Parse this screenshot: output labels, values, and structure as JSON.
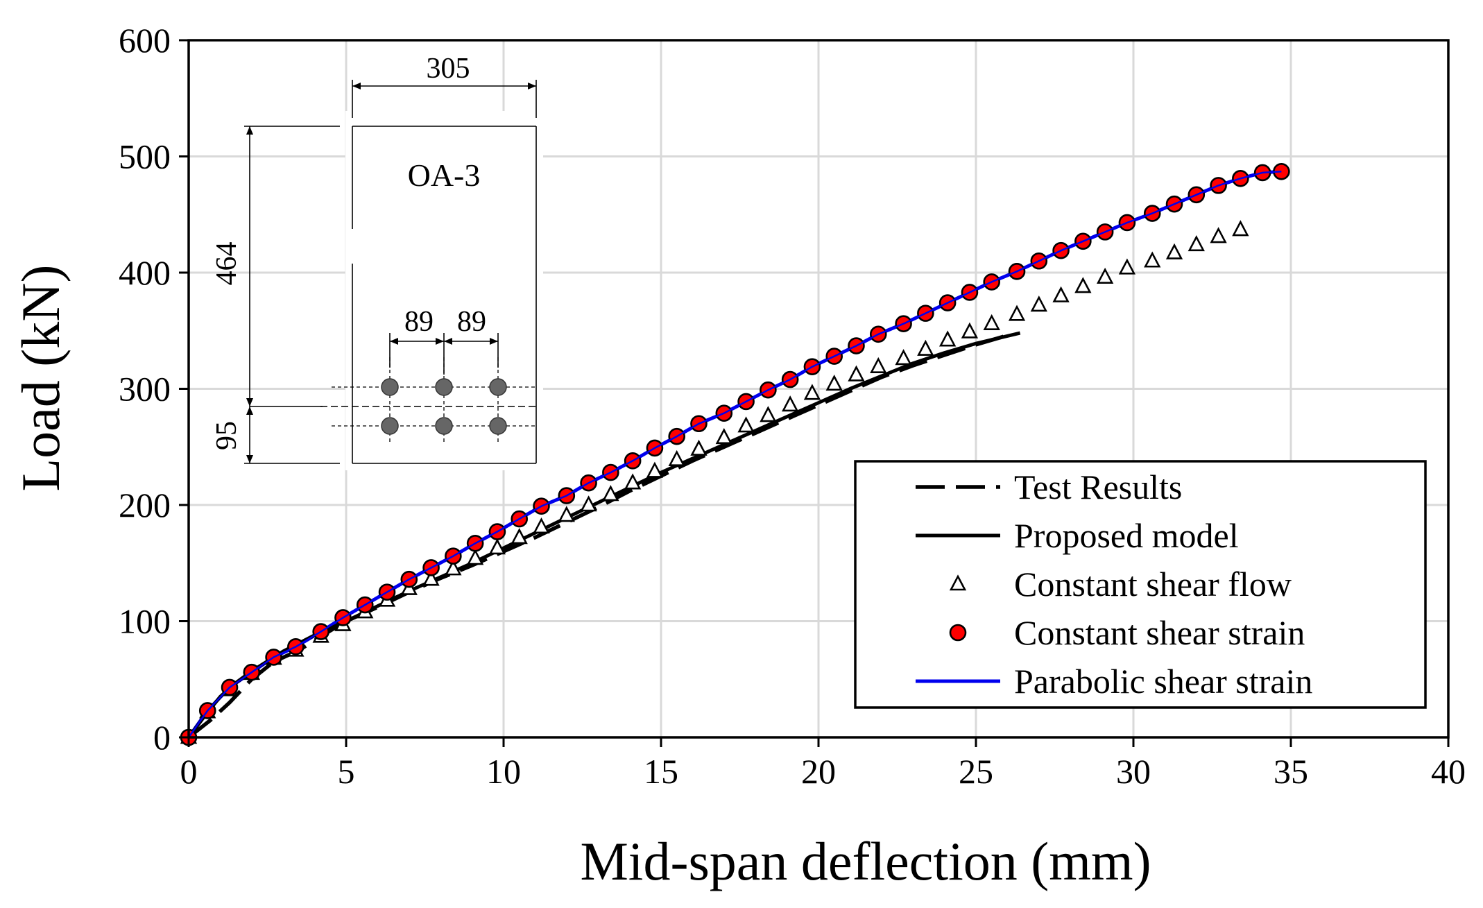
{
  "chart_data": {
    "type": "line",
    "title": "",
    "xlabel": "Mid-span deflection (mm)",
    "ylabel": "Load (kN)",
    "xlim": [
      0,
      40
    ],
    "ylim": [
      0,
      600
    ],
    "xticks": [
      0,
      5,
      10,
      15,
      20,
      25,
      30,
      35,
      40
    ],
    "yticks": [
      0,
      100,
      200,
      300,
      400,
      500,
      600
    ],
    "grid": true,
    "legend_position": "bottom-right",
    "colors": {
      "test": "#000000",
      "proposed": "#000000",
      "flow": "#000000",
      "strain_fill": "#ff0000",
      "strain_edge": "#000000",
      "parabolic": "#0000ee"
    },
    "series": [
      {
        "name": "Test Results",
        "style": "dashed-line",
        "x": [
          0,
          0.7,
          1.3,
          2.0,
          2.7,
          3.5,
          4.2,
          5.0,
          6.0,
          7.0,
          8.0,
          9.0,
          10.0,
          11.0,
          12.0,
          13.0,
          14.0,
          15.0,
          16.0,
          17.0,
          18.0,
          19.0,
          20.0,
          21.0,
          22.0,
          23.0,
          24.0,
          25.0,
          26.0
        ],
        "y": [
          0,
          15,
          30,
          50,
          65,
          75,
          87,
          100,
          112,
          125,
          137,
          148,
          160,
          172,
          185,
          198,
          212,
          225,
          238,
          250,
          262,
          274,
          286,
          298,
          310,
          320,
          329,
          338,
          346
        ]
      },
      {
        "name": "Proposed model",
        "style": "solid-line",
        "x": [
          0,
          0.5,
          1.0,
          1.5,
          2.0,
          3.0,
          4.0,
          5.0,
          6.0,
          7.0,
          8.0,
          9.0,
          10.0,
          11.0,
          12.0,
          13.0,
          14.0,
          15.0,
          16.0,
          17.0,
          18.0,
          19.0,
          20.0,
          21.0,
          22.0,
          23.0,
          24.0,
          25.0,
          26.4
        ],
        "y": [
          0,
          18,
          35,
          47,
          57,
          74,
          88,
          100,
          113,
          126,
          138,
          150,
          163,
          176,
          189,
          202,
          215,
          228,
          240,
          252,
          264,
          276,
          288,
          300,
          311,
          322,
          331,
          339,
          348
        ]
      },
      {
        "name": "Constant shear flow",
        "style": "open-triangle",
        "x": [
          0,
          0.6,
          1.3,
          2.0,
          2.7,
          3.4,
          4.2,
          4.9,
          5.6,
          6.3,
          7.0,
          7.7,
          8.4,
          9.1,
          9.8,
          10.5,
          11.2,
          12.0,
          12.7,
          13.4,
          14.1,
          14.8,
          15.5,
          16.2,
          17.0,
          17.7,
          18.4,
          19.1,
          19.8,
          20.5,
          21.2,
          21.9,
          22.7,
          23.4,
          24.1,
          24.8,
          25.5,
          26.3,
          27.0,
          27.7,
          28.4,
          29.1,
          29.8,
          30.6,
          31.3,
          32.0,
          32.7,
          33.4
        ],
        "y": [
          0,
          22,
          41,
          55,
          68,
          75,
          87,
          97,
          108,
          118,
          128,
          136,
          145,
          154,
          163,
          172,
          181,
          191,
          200,
          209,
          219,
          229,
          239,
          248,
          258,
          268,
          277,
          286,
          296,
          304,
          312,
          319,
          326,
          334,
          342,
          349,
          356,
          364,
          372,
          380,
          388,
          396,
          404,
          410,
          417,
          424,
          431,
          437
        ]
      },
      {
        "name": "Constant shear strain",
        "style": "filled-circle",
        "x": [
          0,
          0.6,
          1.3,
          2.0,
          2.7,
          3.4,
          4.2,
          4.9,
          5.6,
          6.3,
          7.0,
          7.7,
          8.4,
          9.1,
          9.8,
          10.5,
          11.2,
          12.0,
          12.7,
          13.4,
          14.1,
          14.8,
          15.5,
          16.2,
          17.0,
          17.7,
          18.4,
          19.1,
          19.8,
          20.5,
          21.2,
          21.9,
          22.7,
          23.4,
          24.1,
          24.8,
          25.5,
          26.3,
          27.0,
          27.7,
          28.4,
          29.1,
          29.8,
          30.6,
          31.3,
          32.0,
          32.7,
          33.4,
          34.1,
          34.7
        ],
        "y": [
          0,
          23,
          43,
          56,
          69,
          78,
          91,
          103,
          114,
          125,
          136,
          146,
          156,
          167,
          177,
          188,
          199,
          208,
          219,
          228,
          238,
          249,
          259,
          270,
          279,
          289,
          299,
          308,
          319,
          328,
          337,
          347,
          356,
          365,
          374,
          383,
          392,
          401,
          410,
          419,
          427,
          435,
          443,
          451,
          459,
          467,
          475,
          481,
          486,
          487
        ]
      },
      {
        "name": "Parabolic shear strain",
        "style": "blue-line",
        "x": [
          0,
          0.6,
          1.3,
          2.0,
          2.7,
          3.4,
          4.2,
          4.9,
          5.6,
          6.3,
          7.0,
          7.7,
          8.4,
          9.1,
          9.8,
          10.5,
          11.2,
          12.0,
          12.7,
          13.4,
          14.1,
          14.8,
          15.5,
          16.2,
          17.0,
          17.7,
          18.4,
          19.1,
          19.8,
          20.5,
          21.2,
          21.9,
          22.7,
          23.4,
          24.1,
          24.8,
          25.5,
          26.3,
          27.0,
          27.7,
          28.4,
          29.1,
          29.8,
          30.6,
          31.3,
          32.0,
          32.7,
          33.4,
          34.1,
          34.7
        ],
        "y": [
          0,
          23,
          43,
          56,
          69,
          78,
          91,
          103,
          114,
          125,
          136,
          146,
          156,
          167,
          177,
          188,
          199,
          208,
          219,
          228,
          238,
          249,
          259,
          270,
          279,
          289,
          299,
          308,
          319,
          328,
          337,
          347,
          356,
          365,
          374,
          383,
          392,
          401,
          410,
          419,
          427,
          435,
          443,
          451,
          459,
          467,
          475,
          481,
          486,
          487
        ]
      }
    ],
    "inset": {
      "label": "OA-3",
      "width_label": "305",
      "height_label": "464",
      "cover_label": "95",
      "spacing_labels": [
        "89",
        "89"
      ]
    }
  }
}
